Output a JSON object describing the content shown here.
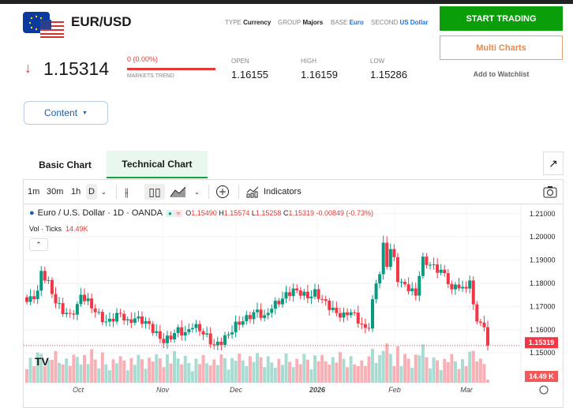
{
  "header": {
    "pair": "EUR/USD",
    "type_label": "TYPE",
    "type": "Currency",
    "group_label": "GROUP",
    "group": "Majors",
    "base_label": "BASE",
    "base": "Euro",
    "second_label": "SECOND",
    "second": "US Dollar"
  },
  "actions": {
    "start_trading": "START TRADING",
    "multi_charts": "Multi Charts",
    "watchlist": "Add to Watchlist"
  },
  "quote": {
    "arrow": "↓",
    "price": "1.15314",
    "change": "0 (0.00%)",
    "trend_label": "MARKETS TREND",
    "open_label": "OPEN",
    "open": "1.16155",
    "high_label": "HIGH",
    "high": "1.16159",
    "low_label": "LOW",
    "low": "1.15286"
  },
  "content_dropdown": "Content",
  "tabs": [
    "Basic Chart",
    "Technical Chart"
  ],
  "toolbar": {
    "intervals": [
      "1m",
      "30m",
      "1h",
      "D"
    ],
    "indicators": "Indicators"
  },
  "legend": {
    "symbol": "Euro / U.S. Dollar · 1D · OANDA",
    "o_label": "O",
    "o": "1.15490",
    "h_label": "H",
    "h": "1.15574",
    "l_label": "L",
    "l": "1.15258",
    "c_label": "C",
    "c": "1.15319",
    "change": "-0.00849 (-0.73%)",
    "vol_label": "Vol · Ticks",
    "vol": "14.49K"
  },
  "chart_data": {
    "type": "candlestick",
    "price_ticks": [
      "1.21000",
      "1.20000",
      "1.19000",
      "1.18000",
      "1.17000",
      "1.16000",
      "1.15000"
    ],
    "ylim": [
      1.146,
      1.214
    ],
    "time_ticks": [
      "Oct",
      "Nov",
      "Dec",
      "2026",
      "Feb",
      "Mar"
    ],
    "last_price": "1.15319",
    "last_volume": "14.49 K",
    "close_keypoints": [
      [
        0,
        1.172
      ],
      [
        3,
        1.176
      ],
      [
        4,
        1.185
      ],
      [
        6,
        1.18
      ],
      [
        8,
        1.172
      ],
      [
        10,
        1.168
      ],
      [
        12,
        1.166
      ],
      [
        14,
        1.17
      ],
      [
        15,
        1.175
      ],
      [
        17,
        1.172
      ],
      [
        19,
        1.168
      ],
      [
        22,
        1.163
      ],
      [
        24,
        1.165
      ],
      [
        26,
        1.167
      ],
      [
        28,
        1.163
      ],
      [
        30,
        1.165
      ],
      [
        32,
        1.164
      ],
      [
        34,
        1.162
      ],
      [
        36,
        1.158
      ],
      [
        38,
        1.155
      ],
      [
        40,
        1.157
      ],
      [
        42,
        1.16
      ],
      [
        44,
        1.158
      ],
      [
        46,
        1.162
      ],
      [
        48,
        1.16
      ],
      [
        50,
        1.157
      ],
      [
        52,
        1.153
      ],
      [
        54,
        1.155
      ],
      [
        56,
        1.158
      ],
      [
        58,
        1.162
      ],
      [
        60,
        1.164
      ],
      [
        62,
        1.166
      ],
      [
        64,
        1.168
      ],
      [
        66,
        1.165
      ],
      [
        68,
        1.17
      ],
      [
        70,
        1.172
      ],
      [
        72,
        1.175
      ],
      [
        74,
        1.177
      ],
      [
        76,
        1.176
      ],
      [
        78,
        1.174
      ],
      [
        80,
        1.176
      ],
      [
        82,
        1.173
      ],
      [
        84,
        1.17
      ],
      [
        86,
        1.167
      ],
      [
        88,
        1.166
      ],
      [
        90,
        1.168
      ],
      [
        92,
        1.164
      ],
      [
        94,
        1.16
      ],
      [
        95,
        1.162
      ],
      [
        96,
        1.172
      ],
      [
        97,
        1.18
      ],
      [
        98,
        1.185
      ],
      [
        99,
        1.196
      ],
      [
        100,
        1.188
      ],
      [
        101,
        1.195
      ],
      [
        102,
        1.19
      ],
      [
        103,
        1.182
      ],
      [
        104,
        1.18
      ],
      [
        106,
        1.178
      ],
      [
        108,
        1.175
      ],
      [
        109,
        1.184
      ],
      [
        110,
        1.19
      ],
      [
        112,
        1.188
      ],
      [
        114,
        1.186
      ],
      [
        116,
        1.184
      ],
      [
        117,
        1.181
      ],
      [
        118,
        1.176
      ],
      [
        119,
        1.18
      ],
      [
        121,
        1.177
      ],
      [
        123,
        1.181
      ],
      [
        124,
        1.17
      ],
      [
        125,
        1.165
      ],
      [
        126,
        1.162
      ],
      [
        127,
        1.161
      ],
      [
        128,
        1.1532
      ]
    ]
  },
  "colors": {
    "up": "#089981",
    "down": "#f23645",
    "green": "#0a9e0a",
    "orange": "#e8894a"
  }
}
